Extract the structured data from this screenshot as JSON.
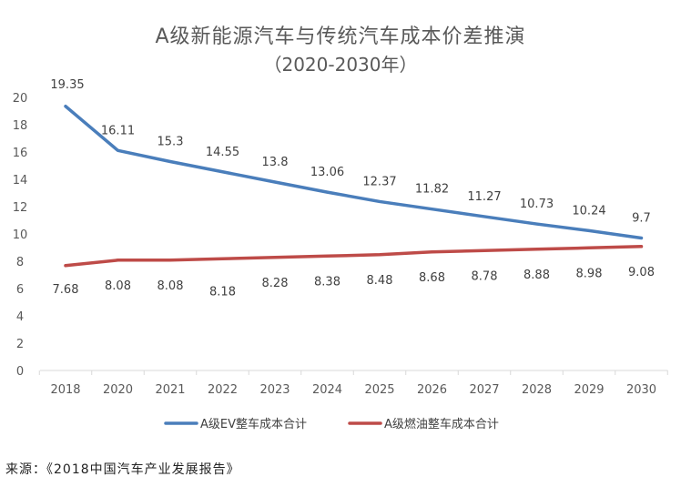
{
  "chart_data": {
    "type": "line",
    "title": "A级新能源汽车与传统汽车成本价差推演",
    "subtitle": "（2020-2030年）",
    "categories": [
      "2018",
      "2020",
      "2021",
      "2022",
      "2023",
      "2024",
      "2025",
      "2026",
      "2027",
      "2028",
      "2029",
      "2030"
    ],
    "series": [
      {
        "name": "A级EV整车成本合计",
        "color": "#4A7EBB",
        "values": [
          19.35,
          16.11,
          15.3,
          14.55,
          13.8,
          13.06,
          12.37,
          11.82,
          11.27,
          10.73,
          10.24,
          9.7
        ],
        "labels": [
          "19.35",
          "16.11",
          "15.3",
          "14.55",
          "13.8",
          "13.06",
          "12.37",
          "11.82",
          "11.27",
          "10.73",
          "10.24",
          "9.7"
        ]
      },
      {
        "name": "A级燃油整车成本合计",
        "color": "#BE4B48",
        "values": [
          7.68,
          8.08,
          8.08,
          8.18,
          8.28,
          8.38,
          8.48,
          8.68,
          8.78,
          8.88,
          8.98,
          9.08
        ],
        "labels": [
          "7.68",
          "8.08",
          "8.08",
          "8.18",
          "8.28",
          "8.38",
          "8.48",
          "8.68",
          "8.78",
          "8.88",
          "8.98",
          "9.08"
        ]
      }
    ],
    "ylim": [
      0,
      20
    ],
    "yticks": [
      "0",
      "2",
      "4",
      "6",
      "8",
      "10",
      "12",
      "14",
      "16",
      "18",
      "20"
    ],
    "grid": false,
    "legend_position": "bottom"
  },
  "source_text": "来源：《2018中国汽车产业发展报告》"
}
